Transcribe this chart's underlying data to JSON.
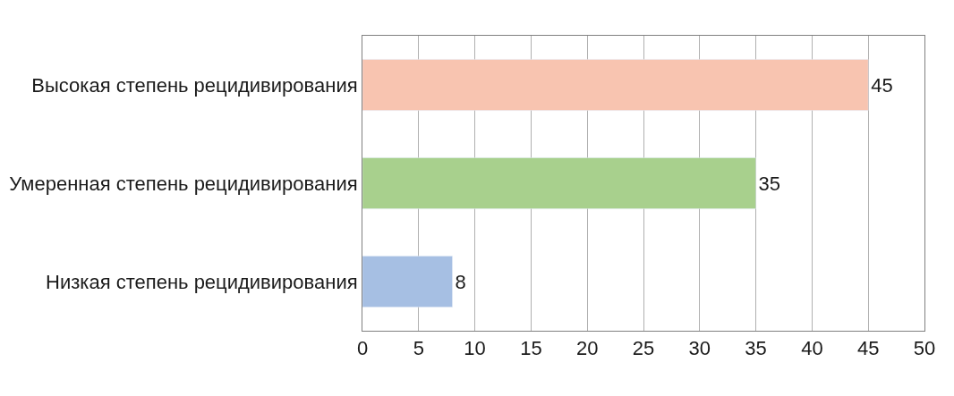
{
  "chart_data": {
    "type": "bar",
    "orientation": "horizontal",
    "categories": [
      "Высокая степень рецидивирования",
      "Умеренная степень рецидивирования",
      "Низкая степень рецидивирования"
    ],
    "values": [
      45,
      35,
      8
    ],
    "colors": [
      "#f8c4b0",
      "#a8d08d",
      "#a6bfe3"
    ],
    "xlim": [
      0,
      50
    ],
    "xticks": [
      0,
      5,
      10,
      15,
      20,
      25,
      30,
      35,
      40,
      45,
      50
    ],
    "grid": "x",
    "data_labels": true,
    "legend": false
  }
}
